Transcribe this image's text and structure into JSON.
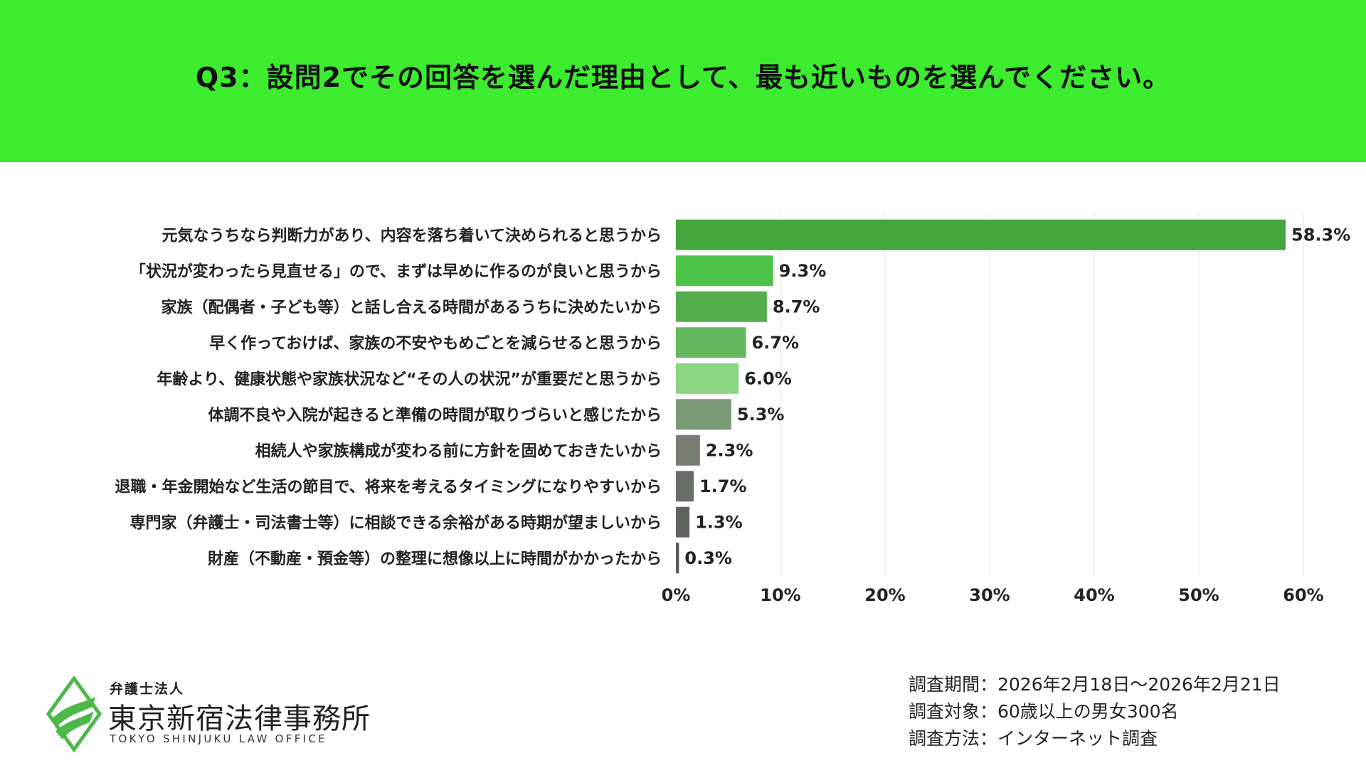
{
  "header": {
    "title": "Q3：設問2でその回答を選んだ理由として、最も近いものを選んでください。",
    "bg_color": "#3deb2f"
  },
  "chart_data": {
    "type": "bar",
    "orientation": "horizontal",
    "title": "Q3：設問2でその回答を選んだ理由として、最も近いものを選んでください。",
    "categories": [
      "元気なうちなら判断力があり、内容を落ち着いて決められると思うから",
      "「状況が変わったら見直せる」ので、まずは早めに作るのが良いと思うから",
      "家族（配偶者・子ども等）と話し合える時間があるうちに決めたいから",
      "早く作っておけば、家族の不安やもめごとを減らせると思うから",
      "年齢より、健康状態や家族状況など“その人の状況”が重要だと思うから",
      "体調不良や入院が起きると準備の時間が取りづらいと感じたから",
      "相続人や家族構成が変わる前に方針を固めておきたいから",
      "退職・年金開始など生活の節目で、将来を考えるタイミングになりやすいから",
      "専門家（弁護士・司法書士等）に相談できる余裕がある時期が望ましいから",
      "財産（不動産・預金等）の整理に想像以上に時間がかかったから"
    ],
    "values": [
      58.3,
      9.3,
      8.7,
      6.7,
      6.0,
      5.3,
      2.3,
      1.7,
      1.3,
      0.3
    ],
    "value_labels": [
      "58.3%",
      "9.3%",
      "8.7%",
      "6.7%",
      "6.0%",
      "5.3%",
      "2.3%",
      "1.7%",
      "1.3%",
      "0.3%"
    ],
    "colors": [
      "#46a63e",
      "#4dc447",
      "#52ad4a",
      "#66b85e",
      "#8ad57f",
      "#7a9a78",
      "#767e74",
      "#676e66",
      "#5e655d",
      "#555b55"
    ],
    "xlim": [
      0,
      60
    ],
    "xticks": [
      0,
      10,
      20,
      30,
      40,
      50,
      60
    ],
    "xtick_labels": [
      "0%",
      "10%",
      "20%",
      "30%",
      "40%",
      "50%",
      "60%"
    ],
    "xlabel": "",
    "ylabel": "",
    "grid": true
  },
  "footer": {
    "logo": {
      "subtitle": "弁護士法人",
      "name": "東京新宿法律事務所",
      "english": "TOKYO SHINJUKU LAW OFFICE"
    },
    "survey": {
      "period": "調査期間：2026年2月18日〜2026年2月21日",
      "target": "調査対象：60歳以上の男女300名",
      "method": "調査方法：インターネット調査"
    }
  }
}
